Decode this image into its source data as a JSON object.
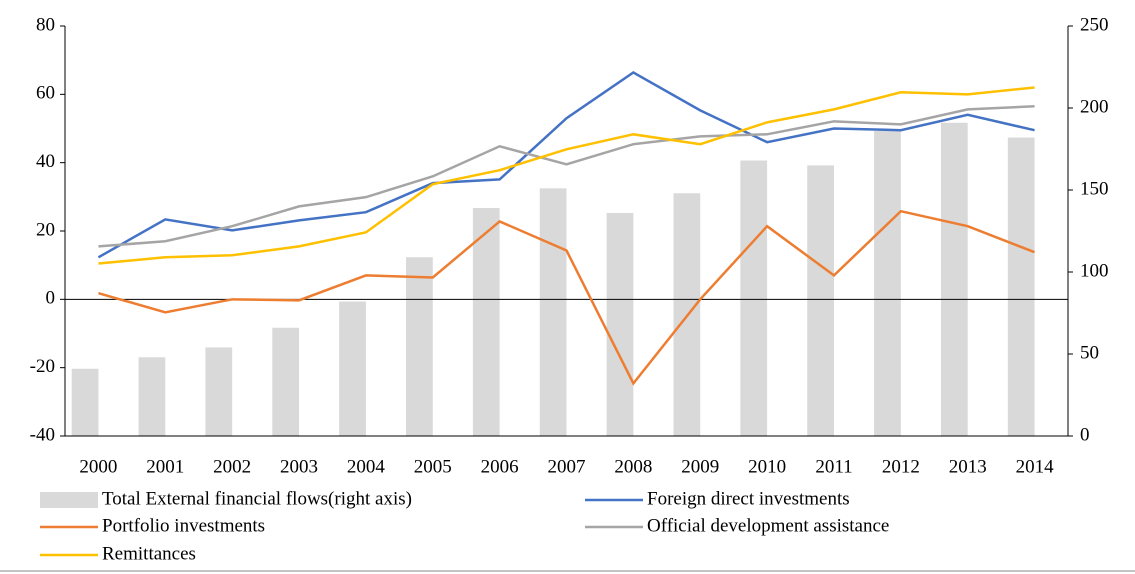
{
  "chart_data": {
    "type": "combo",
    "categories": [
      "2000",
      "2001",
      "2002",
      "2003",
      "2004",
      "2005",
      "2006",
      "2007",
      "2008",
      "2009",
      "2010",
      "2011",
      "2012",
      "2013",
      "2014"
    ],
    "series": [
      {
        "name": "Total External financial flows(right axis)",
        "type": "bar",
        "axis": "y2",
        "color": "#d9d9d9",
        "values": [
          41,
          48,
          54,
          66,
          82,
          109,
          139,
          151,
          136,
          148,
          168,
          165,
          186,
          191,
          182
        ]
      },
      {
        "name": "Foreign direct investments",
        "type": "line",
        "color": "#4472c4",
        "values": [
          12.3,
          23.4,
          20.2,
          23.1,
          25.5,
          34,
          35.1,
          53,
          66.4,
          55.3,
          46,
          50,
          49.5,
          54,
          49.5
        ]
      },
      {
        "name": "Portfolio  investments",
        "type": "line",
        "color": "#ed7d31",
        "values": [
          1.8,
          -3.8,
          0,
          -0.3,
          7,
          6.4,
          22.8,
          14.3,
          -24.6,
          0,
          21.4,
          7,
          25.8,
          21.4,
          13.8
        ]
      },
      {
        "name": "Official development assistance",
        "type": "line",
        "color": "#a5a5a5",
        "values": [
          15.5,
          17,
          21.4,
          27.2,
          29.9,
          36,
          44.8,
          39.5,
          45.4,
          47.7,
          48.3,
          52.1,
          51.2,
          55.6,
          56.5
        ]
      },
      {
        "name": "Remittances",
        "type": "line",
        "color": "#ffc000",
        "values": [
          10.5,
          12.3,
          12.9,
          15.5,
          19.6,
          33.7,
          37.8,
          43.9,
          48.3,
          45.4,
          51.8,
          55.6,
          60.6,
          60,
          62
        ]
      }
    ],
    "ylim": [
      -40,
      80
    ],
    "yticks": [
      -40,
      -20,
      0,
      20,
      40,
      60,
      80
    ],
    "y2lim": [
      0,
      250
    ],
    "y2ticks": [
      0,
      50,
      100,
      150,
      200,
      250
    ]
  }
}
